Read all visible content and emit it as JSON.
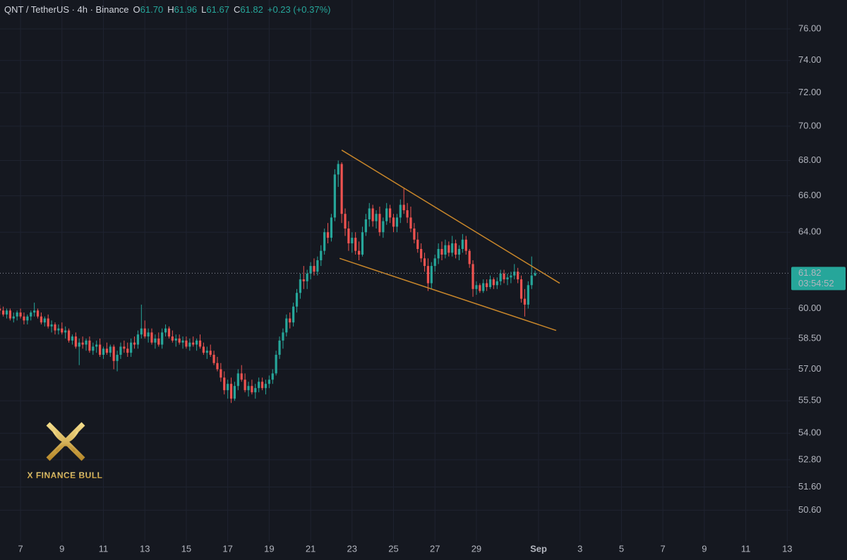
{
  "chart_data": {
    "type": "candlestick",
    "title": "QNT / TetherUS · 4h · Binance",
    "ohlc_legend": [
      {
        "key": "O",
        "value": "61.70"
      },
      {
        "key": "H",
        "value": "61.96"
      },
      {
        "key": "L",
        "value": "61.67"
      },
      {
        "key": "C",
        "value": "61.82"
      }
    ],
    "change": "+0.23 (+0.37%)",
    "last_price": {
      "value": 61.82,
      "label": "61.82"
    },
    "countdown": "03:54:52",
    "watermark": "X FINANCE BULL",
    "log_scale": true,
    "grid": true,
    "up_color": "#26a69a",
    "down_color": "#ef5350",
    "trendline_color": "#c8862a",
    "trendlines": [
      {
        "x": [
          22.5,
          33.02
        ],
        "y": [
          68.6,
          61.3
        ]
      },
      {
        "x": [
          22.4,
          32.85
        ],
        "y": [
          62.6,
          58.9
        ]
      }
    ],
    "xlim": [
      6.01,
      44.16
    ],
    "xticks": [
      7,
      9,
      11,
      13,
      15,
      17,
      19,
      21,
      23,
      25,
      27,
      29,
      {
        "value": 32,
        "label": "Sep"
      },
      {
        "value": 34,
        "label": "3"
      },
      {
        "value": 36,
        "label": "5"
      },
      {
        "value": 38,
        "label": "7"
      },
      {
        "value": 40,
        "label": "9"
      },
      {
        "value": 42,
        "label": "11"
      },
      {
        "value": 44,
        "label": "13"
      }
    ],
    "ylim": [
      49.27,
      77.88
    ],
    "yticks": [
      {
        "value": 50.6,
        "label": "50.60"
      },
      {
        "value": 51.6,
        "label": "51.60"
      },
      {
        "value": 52.8,
        "label": "52.80"
      },
      {
        "value": 54,
        "label": "54.00"
      },
      {
        "value": 55.5,
        "label": "55.50"
      },
      {
        "value": 57,
        "label": "57.00"
      },
      {
        "value": 58.5,
        "label": "58.50"
      },
      {
        "value": 60,
        "label": "60.00"
      },
      {
        "value": 64,
        "label": "64.00"
      },
      {
        "value": 66,
        "label": "66.00"
      },
      {
        "value": 68,
        "label": "68.00"
      },
      {
        "value": 70,
        "label": "70.00"
      },
      {
        "value": 72,
        "label": "72.00"
      },
      {
        "value": 74,
        "label": "74.00"
      },
      {
        "value": 76,
        "label": "76.00"
      }
    ],
    "x": [
      6,
      6.167,
      6.333,
      6.5,
      6.667,
      6.833,
      7,
      7.167,
      7.333,
      7.5,
      7.667,
      7.833,
      8,
      8.167,
      8.333,
      8.5,
      8.667,
      8.833,
      9,
      9.167,
      9.333,
      9.5,
      9.667,
      9.833,
      10,
      10.167,
      10.333,
      10.5,
      10.667,
      10.833,
      11,
      11.167,
      11.333,
      11.5,
      11.667,
      11.833,
      12,
      12.167,
      12.333,
      12.5,
      12.667,
      12.833,
      13,
      13.167,
      13.333,
      13.5,
      13.667,
      13.833,
      14,
      14.167,
      14.333,
      14.5,
      14.667,
      14.833,
      15,
      15.167,
      15.333,
      15.5,
      15.667,
      15.833,
      16,
      16.167,
      16.333,
      16.5,
      16.667,
      16.833,
      17,
      17.167,
      17.333,
      17.5,
      17.667,
      17.833,
      18,
      18.167,
      18.333,
      18.5,
      18.667,
      18.833,
      19,
      19.167,
      19.333,
      19.5,
      19.667,
      19.833,
      20,
      20.167,
      20.333,
      20.5,
      20.667,
      20.833,
      21,
      21.167,
      21.333,
      21.5,
      21.667,
      21.833,
      22,
      22.167,
      22.333,
      22.5,
      22.667,
      22.833,
      23,
      23.167,
      23.333,
      23.5,
      23.667,
      23.833,
      24,
      24.167,
      24.333,
      24.5,
      24.667,
      24.833,
      25,
      25.167,
      25.333,
      25.5,
      25.667,
      25.833,
      26,
      26.167,
      26.333,
      26.5,
      26.667,
      26.833,
      27,
      27.167,
      27.333,
      27.5,
      27.667,
      27.833,
      28,
      28.167,
      28.333,
      28.5,
      28.667,
      28.833,
      29,
      29.167,
      29.333,
      29.5,
      29.667,
      29.833,
      30,
      30.167,
      30.333,
      30.5,
      30.667,
      30.833,
      31,
      31.167,
      31.333,
      31.5,
      31.667,
      31.833
    ],
    "candles": [
      [
        60.0,
        60.2,
        59.7,
        59.9
      ],
      [
        59.9,
        60.1,
        59.6,
        59.7
      ],
      [
        59.7,
        60.0,
        59.5,
        59.9
      ],
      [
        59.9,
        60.0,
        59.4,
        59.5
      ],
      [
        59.5,
        59.8,
        59.3,
        59.6
      ],
      [
        59.6,
        59.9,
        59.4,
        59.8
      ],
      [
        59.8,
        60.0,
        59.5,
        59.6
      ],
      [
        59.6,
        59.8,
        59.2,
        59.4
      ],
      [
        59.4,
        59.7,
        59.2,
        59.6
      ],
      [
        59.6,
        59.9,
        59.4,
        59.8
      ],
      [
        59.8,
        60.3,
        59.6,
        59.9
      ],
      [
        59.9,
        60.0,
        59.5,
        59.6
      ],
      [
        59.6,
        59.8,
        59.2,
        59.3
      ],
      [
        59.3,
        59.6,
        59.1,
        59.5
      ],
      [
        59.5,
        59.7,
        59.0,
        59.1
      ],
      [
        59.1,
        59.4,
        58.8,
        59.2
      ],
      [
        59.2,
        59.3,
        58.7,
        58.9
      ],
      [
        58.9,
        59.2,
        58.7,
        59.0
      ],
      [
        59.0,
        59.3,
        58.7,
        58.8
      ],
      [
        58.8,
        59.1,
        58.5,
        58.9
      ],
      [
        58.9,
        59.0,
        58.3,
        58.4
      ],
      [
        58.4,
        58.7,
        58.2,
        58.6
      ],
      [
        58.6,
        58.8,
        58.0,
        58.1
      ],
      [
        58.1,
        58.5,
        57.2,
        58.3
      ],
      [
        58.3,
        58.6,
        58.0,
        58.2
      ],
      [
        58.2,
        58.5,
        57.9,
        58.4
      ],
      [
        58.4,
        58.6,
        57.8,
        57.9
      ],
      [
        57.9,
        58.3,
        57.7,
        58.1
      ],
      [
        58.1,
        58.4,
        57.8,
        58.2
      ],
      [
        58.2,
        58.5,
        57.6,
        57.7
      ],
      [
        57.7,
        58.1,
        57.5,
        58.0
      ],
      [
        58.0,
        58.3,
        57.7,
        57.8
      ],
      [
        57.8,
        58.2,
        57.6,
        58.1
      ],
      [
        58.1,
        58.2,
        57.0,
        57.4
      ],
      [
        57.4,
        57.9,
        56.9,
        57.7
      ],
      [
        57.7,
        58.3,
        57.5,
        58.1
      ],
      [
        58.1,
        58.4,
        57.8,
        58.0
      ],
      [
        58.0,
        58.3,
        57.6,
        57.8
      ],
      [
        57.8,
        58.5,
        57.6,
        58.3
      ],
      [
        58.3,
        58.6,
        58.0,
        58.2
      ],
      [
        58.2,
        58.9,
        58.0,
        58.7
      ],
      [
        58.7,
        60.2,
        58.5,
        59.0
      ],
      [
        59.0,
        59.4,
        58.5,
        58.6
      ],
      [
        58.6,
        59.0,
        58.3,
        58.8
      ],
      [
        58.8,
        59.0,
        58.2,
        58.3
      ],
      [
        58.3,
        58.7,
        58.0,
        58.5
      ],
      [
        58.5,
        58.8,
        58.1,
        58.2
      ],
      [
        58.2,
        59.0,
        58.0,
        58.8
      ],
      [
        58.8,
        59.2,
        58.6,
        59.0
      ],
      [
        59.0,
        59.1,
        58.5,
        58.6
      ],
      [
        58.6,
        58.9,
        58.3,
        58.4
      ],
      [
        58.4,
        58.7,
        58.1,
        58.5
      ],
      [
        58.5,
        58.7,
        58.2,
        58.3
      ],
      [
        58.3,
        58.6,
        58.0,
        58.4
      ],
      [
        58.4,
        58.6,
        58.0,
        58.1
      ],
      [
        58.1,
        58.5,
        57.9,
        58.3
      ],
      [
        58.3,
        58.6,
        58.1,
        58.2
      ],
      [
        58.2,
        58.5,
        57.9,
        58.4
      ],
      [
        58.4,
        58.7,
        58.0,
        58.1
      ],
      [
        58.1,
        58.3,
        57.7,
        57.8
      ],
      [
        57.8,
        58.1,
        57.5,
        57.9
      ],
      [
        57.9,
        58.2,
        57.6,
        57.7
      ],
      [
        57.7,
        57.9,
        57.2,
        57.3
      ],
      [
        57.3,
        57.6,
        56.9,
        57.0
      ],
      [
        57.0,
        57.3,
        56.4,
        56.6
      ],
      [
        56.6,
        56.9,
        55.8,
        56.0
      ],
      [
        56.0,
        56.5,
        55.6,
        56.3
      ],
      [
        56.3,
        56.6,
        55.4,
        55.6
      ],
      [
        55.6,
        56.4,
        55.5,
        56.2
      ],
      [
        56.2,
        57.0,
        56.0,
        56.8
      ],
      [
        56.8,
        57.2,
        56.4,
        56.5
      ],
      [
        56.5,
        56.8,
        55.9,
        56.0
      ],
      [
        56.0,
        56.4,
        55.7,
        56.2
      ],
      [
        56.2,
        56.5,
        55.8,
        55.9
      ],
      [
        55.9,
        56.3,
        55.6,
        56.1
      ],
      [
        56.1,
        56.6,
        55.9,
        56.4
      ],
      [
        56.4,
        56.6,
        56.0,
        56.1
      ],
      [
        56.1,
        56.5,
        55.8,
        56.3
      ],
      [
        56.3,
        56.7,
        56.1,
        56.5
      ],
      [
        56.5,
        57.0,
        56.3,
        56.8
      ],
      [
        56.8,
        57.9,
        56.7,
        57.7
      ],
      [
        57.7,
        58.6,
        57.5,
        58.4
      ],
      [
        58.4,
        59.0,
        58.0,
        58.8
      ],
      [
        58.8,
        59.7,
        58.6,
        59.5
      ],
      [
        59.5,
        59.8,
        59.0,
        59.3
      ],
      [
        59.3,
        60.3,
        59.1,
        60.1
      ],
      [
        60.1,
        61.0,
        59.8,
        60.8
      ],
      [
        60.8,
        61.8,
        60.5,
        61.5
      ],
      [
        61.5,
        62.2,
        61.0,
        61.4
      ],
      [
        61.4,
        62.0,
        61.0,
        61.8
      ],
      [
        61.8,
        62.4,
        61.5,
        62.2
      ],
      [
        62.2,
        62.6,
        61.7,
        61.9
      ],
      [
        61.9,
        62.7,
        61.7,
        62.5
      ],
      [
        62.5,
        63.3,
        62.2,
        63.0
      ],
      [
        63.0,
        64.2,
        62.8,
        64.0
      ],
      [
        64.0,
        64.5,
        63.4,
        63.7
      ],
      [
        63.7,
        65.0,
        63.5,
        64.8
      ],
      [
        64.8,
        67.5,
        64.6,
        67.2
      ],
      [
        67.2,
        68.0,
        66.5,
        67.8
      ],
      [
        67.8,
        67.9,
        64.5,
        65.0
      ],
      [
        65.0,
        65.3,
        63.8,
        64.2
      ],
      [
        64.2,
        64.6,
        63.0,
        63.4
      ],
      [
        63.4,
        64.0,
        62.9,
        63.7
      ],
      [
        63.7,
        64.0,
        62.8,
        63.0
      ],
      [
        63.0,
        63.5,
        62.5,
        62.8
      ],
      [
        62.8,
        64.3,
        62.7,
        64.0
      ],
      [
        64.0,
        65.0,
        63.8,
        64.7
      ],
      [
        64.7,
        65.6,
        64.3,
        65.3
      ],
      [
        65.3,
        65.5,
        64.3,
        64.6
      ],
      [
        64.6,
        65.2,
        64.2,
        65.0
      ],
      [
        65.0,
        65.4,
        63.8,
        64.0
      ],
      [
        64.0,
        64.8,
        63.7,
        64.6
      ],
      [
        64.6,
        65.6,
        64.4,
        65.3
      ],
      [
        65.3,
        65.5,
        64.5,
        64.8
      ],
      [
        64.8,
        65.0,
        64.0,
        64.3
      ],
      [
        64.3,
        65.0,
        64.0,
        64.8
      ],
      [
        64.8,
        65.8,
        64.5,
        65.5
      ],
      [
        65.5,
        66.4,
        65.0,
        65.2
      ],
      [
        65.2,
        65.6,
        64.5,
        64.8
      ],
      [
        64.8,
        65.4,
        64.0,
        64.2
      ],
      [
        64.2,
        64.5,
        63.4,
        63.6
      ],
      [
        63.6,
        64.0,
        62.9,
        63.1
      ],
      [
        63.1,
        63.4,
        62.4,
        62.6
      ],
      [
        62.6,
        62.9,
        61.9,
        62.2
      ],
      [
        62.2,
        62.6,
        60.9,
        61.3
      ],
      [
        61.3,
        62.4,
        61.0,
        62.2
      ],
      [
        62.2,
        62.8,
        61.9,
        62.6
      ],
      [
        62.6,
        63.4,
        62.3,
        63.1
      ],
      [
        63.1,
        63.5,
        62.5,
        62.8
      ],
      [
        62.8,
        63.6,
        62.6,
        63.3
      ],
      [
        63.3,
        63.5,
        62.7,
        62.9
      ],
      [
        62.9,
        63.8,
        62.7,
        63.4
      ],
      [
        63.4,
        63.6,
        62.6,
        62.8
      ],
      [
        62.8,
        63.3,
        62.5,
        63.1
      ],
      [
        63.1,
        63.9,
        62.9,
        63.6
      ],
      [
        63.6,
        63.8,
        62.8,
        63.0
      ],
      [
        63.0,
        63.1,
        62.1,
        62.3
      ],
      [
        62.3,
        62.5,
        60.6,
        61.0
      ],
      [
        61.0,
        61.4,
        60.7,
        61.2
      ],
      [
        61.2,
        61.3,
        60.8,
        60.9
      ],
      [
        60.9,
        61.5,
        60.8,
        61.3
      ],
      [
        61.3,
        61.5,
        60.9,
        61.1
      ],
      [
        61.1,
        61.7,
        61.0,
        61.5
      ],
      [
        61.5,
        61.6,
        61.0,
        61.2
      ],
      [
        61.2,
        61.6,
        61.0,
        61.4
      ],
      [
        61.4,
        62.0,
        61.2,
        61.8
      ],
      [
        61.8,
        62.0,
        61.3,
        61.5
      ],
      [
        61.5,
        61.8,
        61.2,
        61.6
      ],
      [
        61.6,
        61.9,
        61.3,
        61.7
      ],
      [
        61.7,
        62.3,
        61.5,
        61.9
      ],
      [
        61.9,
        62.1,
        61.3,
        61.5
      ],
      [
        61.5,
        61.7,
        60.3,
        60.5
      ],
      [
        60.5,
        61.0,
        59.6,
        60.2
      ],
      [
        60.2,
        61.4,
        60.0,
        61.2
      ],
      [
        61.2,
        62.7,
        61.0,
        61.7
      ],
      [
        61.7,
        61.96,
        61.67,
        61.82
      ]
    ]
  }
}
